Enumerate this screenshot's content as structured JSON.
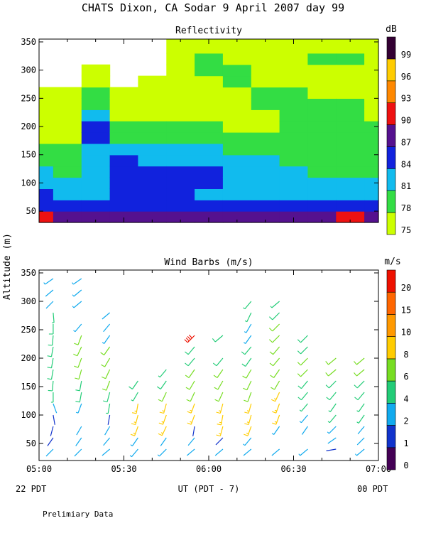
{
  "header": {
    "title": "CHATS Dixon, CA  Sodar   9 April 2007  day  99"
  },
  "footer": {
    "left_local": "22 PDT",
    "right_local": "00 PDT",
    "note": "Prelimiary Data"
  },
  "chart_data": [
    {
      "type": "heatmap",
      "title": "Reflectivity",
      "xlabel": "",
      "ylabel": "",
      "x_ticks": [
        "05:00",
        "05:30",
        "06:00",
        "06:30",
        "07:00"
      ],
      "x_range": [
        "05:00",
        "07:00"
      ],
      "ylim": [
        30,
        355
      ],
      "y_ticks": [
        50,
        100,
        150,
        200,
        250,
        300,
        350
      ],
      "colorbar": {
        "unit": "dB",
        "levels": [
          75,
          78,
          81,
          84,
          87,
          90,
          93,
          96,
          99
        ],
        "colors": [
          "#ccff00",
          "#33dd44",
          "#11bbee",
          "#1122dd",
          "#55118f",
          "#ee1111",
          "#ff8800",
          "#ffcc00",
          "#330033"
        ]
      },
      "times": [
        "05:00",
        "05:10",
        "05:20",
        "05:30",
        "05:40",
        "05:50",
        "06:00",
        "06:10",
        "06:20",
        "06:30",
        "06:40",
        "06:50",
        "07:00"
      ],
      "altitudes": [
        40,
        60,
        80,
        100,
        120,
        140,
        160,
        180,
        200,
        220,
        240,
        260,
        280,
        300,
        320,
        340
      ],
      "values_db": [
        [
          90,
          86,
          84,
          83,
          81,
          79,
          78,
          77,
          77,
          76,
          76,
          75,
          74,
          74,
          74,
          74
        ],
        [
          88,
          85,
          83,
          81,
          80,
          79,
          78,
          77,
          77,
          76,
          76,
          75,
          74,
          74,
          74,
          74
        ],
        [
          88,
          85,
          83,
          82,
          82,
          82,
          82,
          84,
          84,
          82,
          80,
          78,
          76,
          75,
          74,
          74
        ],
        [
          88,
          85,
          84,
          85,
          86,
          84,
          81,
          79,
          78,
          77,
          76,
          75,
          74,
          74,
          74,
          74
        ],
        [
          88,
          85,
          85,
          86,
          85,
          83,
          81,
          79,
          78,
          77,
          76,
          76,
          75,
          74,
          74,
          74
        ],
        [
          88,
          85,
          84,
          85,
          85,
          83,
          81,
          79,
          78,
          77,
          76,
          76,
          76,
          77,
          76,
          75
        ],
        [
          88,
          85,
          83,
          84,
          84,
          83,
          81,
          79,
          78,
          77,
          76,
          76,
          77,
          78,
          79,
          77
        ],
        [
          88,
          84,
          82,
          83,
          83,
          82,
          80,
          78,
          77,
          76,
          76,
          77,
          78,
          78,
          77,
          76
        ],
        [
          88,
          84,
          82,
          82,
          82,
          81,
          80,
          78,
          77,
          77,
          78,
          79,
          77,
          76,
          76,
          75
        ],
        [
          89,
          86,
          83,
          82,
          81,
          80,
          79,
          78,
          78,
          78,
          79,
          78,
          77,
          76,
          75,
          75
        ],
        [
          87,
          85,
          83,
          81,
          80,
          79,
          79,
          78,
          78,
          78,
          78,
          77,
          76,
          77,
          79,
          77
        ],
        [
          90,
          86,
          83,
          81,
          80,
          79,
          79,
          79,
          79,
          79,
          78,
          77,
          76,
          77,
          78,
          76
        ],
        [
          89,
          86,
          83,
          81,
          80,
          79,
          79,
          78,
          78,
          77,
          77,
          76,
          75,
          75,
          75,
          75
        ]
      ]
    },
    {
      "type": "scatter",
      "title": "Wind Barbs (m/s)",
      "xlabel": "UT  (PDT - 7)",
      "ylabel": "Altitude (m)",
      "x_ticks": [
        "05:00",
        "05:30",
        "06:00",
        "06:30",
        "07:00"
      ],
      "x_range": [
        "05:00",
        "07:00"
      ],
      "ylim": [
        20,
        355
      ],
      "y_ticks": [
        50,
        100,
        150,
        200,
        250,
        300,
        350
      ],
      "colorbar": {
        "unit": "m/s",
        "levels": [
          0,
          1,
          2,
          4,
          6,
          8,
          10,
          15,
          20
        ],
        "colors": [
          "#440055",
          "#1133cc",
          "#11aaee",
          "#22cc77",
          "#77dd22",
          "#ffcc00",
          "#ff9900",
          "#ff6600",
          "#ee1100"
        ]
      },
      "altitudes": [
        40,
        60,
        80,
        100,
        120,
        140,
        160,
        180,
        200,
        220,
        240,
        260,
        280,
        300,
        320,
        340
      ],
      "columns": [
        {
          "time": "05:05",
          "speeds": [
            2,
            1,
            1,
            1,
            2,
            4,
            5,
            5,
            5,
            5,
            5,
            5,
            4,
            2,
            2,
            3
          ],
          "dirs": [
            225,
            215,
            195,
            170,
            160,
            180,
            185,
            190,
            190,
            190,
            185,
            180,
            175,
            225,
            230,
            235
          ]
        },
        {
          "time": "05:15",
          "speeds": [
            2,
            2,
            2,
            0,
            3,
            5,
            5,
            6,
            6,
            6,
            6,
            3,
            0,
            3,
            3,
            3
          ],
          "dirs": [
            225,
            215,
            210,
            0,
            200,
            190,
            190,
            195,
            200,
            205,
            200,
            220,
            0,
            230,
            230,
            235
          ]
        },
        {
          "time": "05:25",
          "speeds": [
            2,
            2,
            2,
            1,
            4,
            5,
            6,
            6,
            6,
            6,
            3,
            2,
            2,
            0,
            0,
            0
          ],
          "dirs": [
            230,
            220,
            210,
            190,
            190,
            195,
            200,
            205,
            210,
            215,
            215,
            220,
            230,
            0,
            0,
            0
          ]
        },
        {
          "time": "05:35",
          "speeds": [
            3,
            3,
            8,
            8,
            8,
            4,
            5,
            0,
            0,
            0,
            0,
            0,
            0,
            0,
            0,
            0
          ],
          "dirs": [
            220,
            215,
            200,
            195,
            190,
            210,
            215,
            0,
            0,
            0,
            0,
            0,
            0,
            0,
            0,
            0
          ]
        },
        {
          "time": "05:45",
          "speeds": [
            3,
            2,
            8,
            9,
            8,
            6,
            5,
            4,
            0,
            0,
            0,
            0,
            0,
            0,
            0,
            0
          ],
          "dirs": [
            225,
            215,
            205,
            200,
            195,
            205,
            215,
            220,
            0,
            0,
            0,
            0,
            0,
            0,
            0,
            0
          ]
        },
        {
          "time": "05:55",
          "speeds": [
            2,
            2,
            1,
            8,
            8,
            7,
            6,
            6,
            5,
            5,
            20,
            0,
            0,
            0,
            0,
            0
          ],
          "dirs": [
            230,
            220,
            190,
            200,
            200,
            205,
            210,
            215,
            220,
            220,
            225,
            0,
            0,
            0,
            0,
            0
          ]
        },
        {
          "time": "06:05",
          "speeds": [
            2,
            1,
            8,
            9,
            8,
            7,
            7,
            6,
            5,
            0,
            5,
            0,
            0,
            0,
            0,
            0
          ],
          "dirs": [
            230,
            225,
            195,
            190,
            195,
            205,
            210,
            215,
            220,
            0,
            230,
            0,
            0,
            0,
            0,
            0
          ]
        },
        {
          "time": "06:15",
          "speeds": [
            2,
            3,
            8,
            9,
            8,
            7,
            6,
            6,
            5,
            5,
            3,
            3,
            4,
            4,
            0,
            0
          ],
          "dirs": [
            230,
            220,
            200,
            195,
            195,
            200,
            205,
            210,
            215,
            220,
            215,
            210,
            205,
            220,
            0,
            0
          ]
        },
        {
          "time": "06:25",
          "speeds": [
            2,
            0,
            3,
            8,
            9,
            8,
            7,
            6,
            6,
            6,
            6,
            6,
            5,
            4,
            0,
            0
          ],
          "dirs": [
            230,
            0,
            215,
            200,
            200,
            205,
            210,
            215,
            220,
            220,
            225,
            225,
            225,
            230,
            0,
            0
          ]
        },
        {
          "time": "06:35",
          "speeds": [
            3,
            0,
            2,
            3,
            4,
            5,
            5,
            6,
            6,
            5,
            5,
            0,
            0,
            0,
            0,
            0
          ],
          "dirs": [
            230,
            0,
            215,
            220,
            220,
            220,
            220,
            225,
            225,
            225,
            225,
            0,
            0,
            0,
            0,
            0
          ]
        },
        {
          "time": "06:45",
          "speeds": [
            1,
            2,
            3,
            4,
            4,
            5,
            5,
            6,
            6,
            0,
            0,
            0,
            0,
            0,
            0,
            0
          ],
          "dirs": [
            260,
            235,
            225,
            220,
            215,
            220,
            225,
            230,
            230,
            0,
            0,
            0,
            0,
            0,
            0,
            0
          ]
        },
        {
          "time": "06:55",
          "speeds": [
            3,
            2,
            2,
            4,
            4,
            5,
            5,
            6,
            6,
            0,
            0,
            0,
            0,
            0,
            0,
            0
          ],
          "dirs": [
            230,
            225,
            220,
            215,
            215,
            220,
            225,
            230,
            230,
            0,
            0,
            0,
            0,
            0,
            0,
            0
          ]
        }
      ]
    }
  ]
}
